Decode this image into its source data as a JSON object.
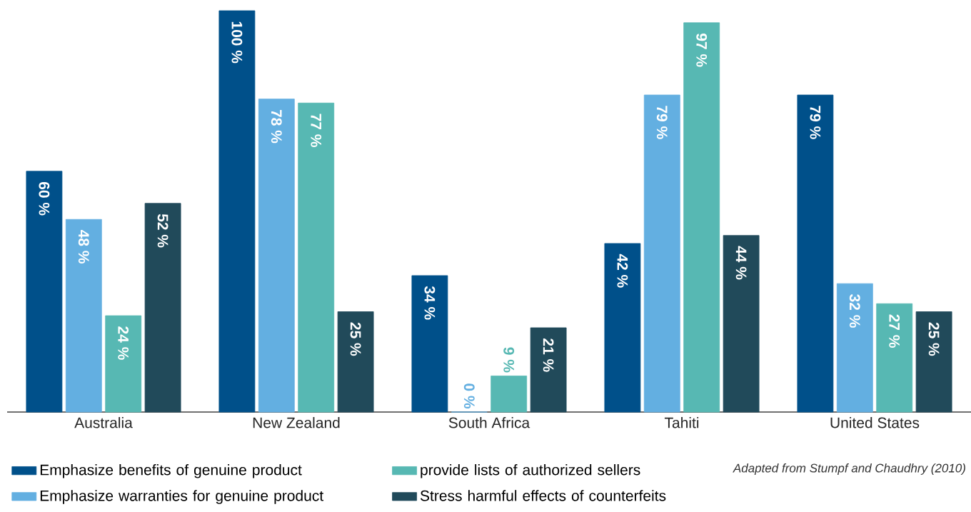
{
  "chart_data": {
    "type": "bar",
    "categories": [
      "Australia",
      "New Zealand",
      "South Africa",
      "Tahiti",
      "United States"
    ],
    "series": [
      {
        "name": "Emphasize benefits of genuine product",
        "color": "#00508a",
        "values": [
          60,
          100,
          34,
          42,
          79
        ],
        "value_labels": [
          "60 %",
          "100 %",
          "34 %",
          "42 %",
          "79 %"
        ]
      },
      {
        "name": "Emphasize warranties for genuine product",
        "color": "#63afe1",
        "values": [
          48,
          78,
          0,
          79,
          32
        ],
        "value_labels": [
          "48 %",
          "78 %",
          "0 %",
          "79 %",
          "32 %"
        ]
      },
      {
        "name": "provide lists of authorized sellers",
        "color": "#57b8b3",
        "values": [
          24,
          77,
          9,
          97,
          27
        ],
        "value_labels": [
          "24 %",
          "77 %",
          "9 %",
          "97 %",
          "27 %"
        ]
      },
      {
        "name": "Stress harmful effects of counterfeits",
        "color": "#214a5a",
        "values": [
          52,
          25,
          21,
          44,
          25
        ],
        "value_labels": [
          "52 %",
          "25 %",
          "21 %",
          "44 %",
          "25 %"
        ]
      }
    ],
    "legend": "bottom",
    "annotations": [
      "Adapted from Stumpf and Chaudhry (2010)"
    ]
  }
}
